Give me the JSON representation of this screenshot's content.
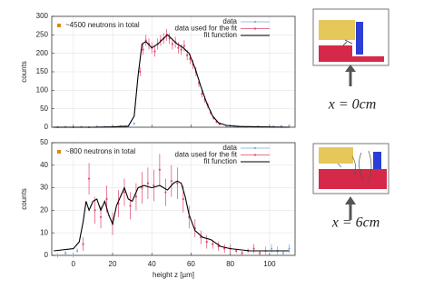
{
  "chart_data": [
    {
      "type": "scatter_fit",
      "annotation": "~4500 neutrons in total",
      "ylabel": "counts",
      "xlim": [
        -11,
        113
      ],
      "xticks": [
        0,
        20,
        40,
        60,
        80,
        100
      ],
      "ylim": [
        0,
        300
      ],
      "yticks": [
        0,
        50,
        100,
        150,
        200,
        250,
        300
      ],
      "grid": true,
      "legend": "top-right",
      "series": [
        {
          "name": "data",
          "color": "#7aa8e0",
          "style": "points",
          "x": [
            -8,
            -4,
            0,
            4,
            8,
            12,
            16,
            20,
            24,
            28,
            31,
            78,
            82,
            86,
            90,
            94,
            98,
            102,
            106,
            110
          ],
          "values": [
            0,
            1,
            0,
            1,
            0,
            2,
            1,
            0,
            3,
            2,
            10,
            4,
            3,
            2,
            1,
            2,
            1,
            2,
            3,
            4
          ],
          "errors": [
            1,
            1,
            1,
            1,
            1,
            2,
            1,
            1,
            2,
            2,
            4,
            2,
            2,
            1,
            1,
            2,
            1,
            2,
            2,
            3
          ]
        },
        {
          "name": "data used for the fit",
          "color": "#e0456a",
          "style": "points",
          "x": [
            34,
            35.5,
            37,
            38.5,
            40,
            41.5,
            43,
            44.5,
            46,
            47.5,
            49,
            50.5,
            52,
            53.5,
            55,
            56.5,
            58,
            59.5,
            61,
            62.5,
            64,
            65.5,
            67,
            68.5,
            70,
            71.5,
            73,
            74.5
          ],
          "values": [
            150,
            210,
            235,
            225,
            215,
            205,
            225,
            235,
            240,
            250,
            240,
            225,
            230,
            215,
            210,
            220,
            195,
            185,
            170,
            150,
            120,
            90,
            75,
            60,
            40,
            25,
            15,
            8
          ],
          "errors": [
            12,
            14,
            15,
            15,
            15,
            14,
            15,
            15,
            15,
            16,
            15,
            15,
            15,
            15,
            14,
            15,
            14,
            14,
            13,
            12,
            11,
            10,
            9,
            8,
            6,
            5,
            4,
            3
          ]
        },
        {
          "name": "fit function",
          "color": "#000000",
          "style": "line",
          "x": [
            -10,
            0,
            10,
            20,
            28,
            31,
            33,
            35,
            37,
            40,
            43,
            46,
            48,
            50,
            53,
            56,
            59,
            62,
            65,
            68,
            71,
            74,
            78,
            85,
            95,
            110
          ],
          "values": [
            0,
            0,
            0,
            1,
            3,
            30,
            140,
            225,
            232,
            215,
            225,
            240,
            250,
            240,
            225,
            215,
            200,
            160,
            110,
            65,
            30,
            12,
            5,
            2,
            1,
            0
          ]
        }
      ]
    },
    {
      "type": "scatter_fit",
      "annotation": "~800 neutrons in total",
      "ylabel": "counts",
      "xlabel": "height z [µm]",
      "xlim": [
        -11,
        113
      ],
      "xticks": [
        0,
        20,
        40,
        60,
        80,
        100
      ],
      "ylim": [
        0,
        50
      ],
      "yticks": [
        0,
        10,
        20,
        30,
        40,
        50
      ],
      "grid": true,
      "legend": "top-right",
      "series": [
        {
          "name": "data",
          "color": "#7aa8e0",
          "style": "points",
          "x": [
            -8,
            -4,
            0,
            2,
            98,
            101,
            104,
            107,
            110
          ],
          "values": [
            0,
            1,
            0,
            2,
            2,
            3,
            2,
            1,
            3
          ],
          "errors": [
            1,
            1,
            1,
            1,
            2,
            2,
            2,
            1,
            2
          ]
        },
        {
          "name": "data used for the fit",
          "color": "#e0456a",
          "style": "points",
          "x": [
            5,
            8,
            11,
            14,
            17,
            20,
            23,
            26,
            29,
            32,
            35,
            38,
            41,
            44,
            47,
            50,
            53,
            56,
            59,
            62,
            65,
            68,
            71,
            74,
            77,
            80,
            83,
            86,
            89,
            92,
            95
          ],
          "values": [
            5,
            34,
            20,
            17,
            25,
            14,
            23,
            28,
            22,
            26,
            30,
            32,
            31,
            38,
            28,
            33,
            32,
            25,
            17,
            12,
            8,
            6,
            5,
            4,
            3,
            3,
            2,
            1,
            2,
            3,
            1
          ],
          "errors": [
            3,
            7,
            6,
            5,
            6,
            5,
            6,
            6,
            6,
            6,
            7,
            7,
            7,
            7,
            6,
            7,
            7,
            6,
            5,
            4,
            3,
            3,
            2,
            2,
            2,
            2,
            1,
            1,
            1,
            2,
            1
          ]
        },
        {
          "name": "fit function",
          "color": "#000000",
          "style": "line",
          "x": [
            -10,
            0,
            3,
            5,
            6.5,
            8,
            10,
            12,
            14,
            16,
            18,
            20,
            22,
            24,
            26,
            28,
            30,
            33,
            36,
            40,
            44,
            48,
            51,
            53,
            55,
            57,
            59,
            62,
            66,
            70,
            75,
            80,
            90,
            100,
            110
          ],
          "values": [
            2,
            3,
            6,
            15,
            24,
            20,
            24,
            25,
            20,
            24,
            18,
            14,
            22,
            26,
            30,
            25,
            24,
            30,
            31,
            30,
            31,
            29,
            32,
            33,
            32,
            26,
            18,
            11,
            8,
            7,
            4,
            3,
            2,
            2,
            2
          ]
        }
      ]
    }
  ],
  "diagrams": [
    {
      "label": "x = 0cm"
    },
    {
      "label": "x = 6cm"
    }
  ]
}
